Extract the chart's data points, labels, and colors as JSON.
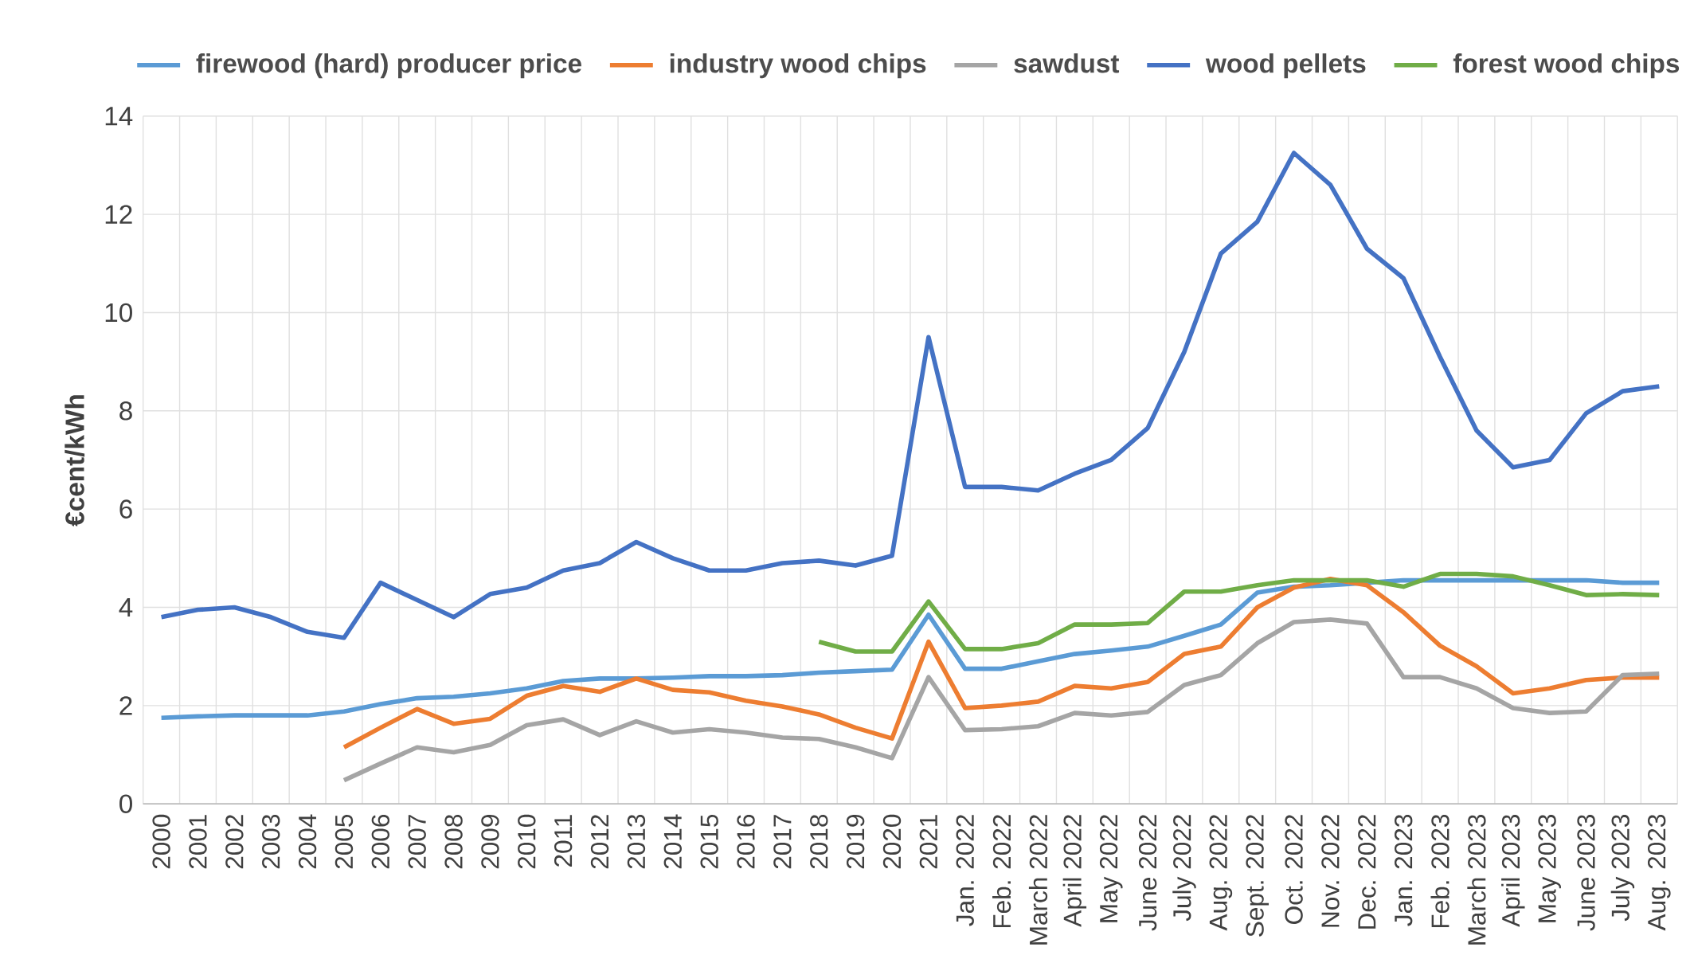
{
  "chart_data": {
    "type": "line",
    "ylabel": "€cent/kWh",
    "categories": [
      "2000",
      "2001",
      "2002",
      "2003",
      "2004",
      "2005",
      "2006",
      "2007",
      "2008",
      "2009",
      "2010",
      "2011",
      "2012",
      "2013",
      "2014",
      "2015",
      "2016",
      "2017",
      "2018",
      "2019",
      "2020",
      "2021",
      "Jan. 2022",
      "Feb. 2022",
      "March 2022",
      "April 2022",
      "May 2022",
      "June 2022",
      "July 2022",
      "Aug. 2022",
      "Sept. 2022",
      "Oct. 2022",
      "Nov. 2022",
      "Dec. 2022",
      "Jan. 2023",
      "Feb. 2023",
      "March 2023",
      "April 2023",
      "May 2023",
      "June 2023",
      "July 2023",
      "Aug. 2023"
    ],
    "series": [
      {
        "name": "firewood (hard) producer price",
        "color": "#5b9bd5",
        "values": [
          1.75,
          1.78,
          1.8,
          1.8,
          1.8,
          1.88,
          2.03,
          2.15,
          2.18,
          2.25,
          2.35,
          2.5,
          2.55,
          2.55,
          2.57,
          2.6,
          2.6,
          2.62,
          2.67,
          2.7,
          2.73,
          3.85,
          2.75,
          2.75,
          2.9,
          3.05,
          3.12,
          3.2,
          3.42,
          3.65,
          4.3,
          4.42,
          4.45,
          4.5,
          4.55,
          4.55,
          4.55,
          4.55,
          4.55,
          4.55,
          4.5,
          4.5
        ]
      },
      {
        "name": "industry wood chips",
        "color": "#ed7d31",
        "values": [
          null,
          null,
          null,
          null,
          null,
          1.15,
          1.55,
          1.93,
          1.63,
          1.73,
          2.2,
          2.4,
          2.28,
          2.55,
          2.32,
          2.27,
          2.1,
          1.98,
          1.82,
          1.55,
          1.33,
          3.3,
          1.95,
          2.0,
          2.08,
          2.4,
          2.35,
          2.48,
          3.05,
          3.2,
          4.0,
          4.4,
          4.58,
          4.45,
          3.9,
          3.22,
          2.8,
          2.25,
          2.35,
          2.52,
          2.57,
          2.57
        ]
      },
      {
        "name": "sawdust",
        "color": "#a5a5a5",
        "values": [
          null,
          null,
          null,
          null,
          null,
          0.48,
          0.82,
          1.15,
          1.05,
          1.2,
          1.6,
          1.72,
          1.4,
          1.68,
          1.45,
          1.52,
          1.45,
          1.35,
          1.32,
          1.15,
          0.93,
          2.58,
          1.5,
          1.52,
          1.58,
          1.85,
          1.8,
          1.87,
          2.42,
          2.62,
          3.27,
          3.7,
          3.75,
          3.67,
          2.58,
          2.58,
          2.35,
          1.95,
          1.85,
          1.88,
          2.62,
          2.65
        ]
      },
      {
        "name": "wood pellets",
        "color": "#4472c4",
        "values": [
          3.8,
          3.95,
          4.0,
          3.8,
          3.5,
          3.38,
          4.5,
          4.15,
          3.8,
          4.27,
          4.4,
          4.75,
          4.9,
          5.33,
          5.0,
          4.75,
          4.75,
          4.9,
          4.95,
          4.85,
          5.05,
          9.5,
          6.45,
          6.45,
          6.38,
          6.72,
          7.0,
          7.65,
          9.2,
          11.2,
          11.85,
          13.25,
          12.6,
          11.3,
          10.7,
          9.1,
          7.6,
          6.85,
          7.0,
          7.95,
          8.4,
          8.5
        ]
      },
      {
        "name": "forest wood chips",
        "color": "#70ad47",
        "values": [
          null,
          null,
          null,
          null,
          null,
          null,
          null,
          null,
          null,
          null,
          null,
          null,
          null,
          null,
          null,
          null,
          null,
          null,
          3.3,
          3.1,
          3.1,
          4.12,
          3.15,
          3.15,
          3.27,
          3.65,
          3.65,
          3.68,
          4.32,
          4.32,
          4.45,
          4.55,
          4.55,
          4.55,
          4.42,
          4.68,
          4.68,
          4.63,
          4.45,
          4.25,
          4.27,
          4.25
        ]
      }
    ],
    "ylim": [
      0,
      14
    ],
    "yticks": [
      0,
      2,
      4,
      6,
      8,
      10,
      12,
      14
    ],
    "grid": true,
    "legend": "top"
  }
}
